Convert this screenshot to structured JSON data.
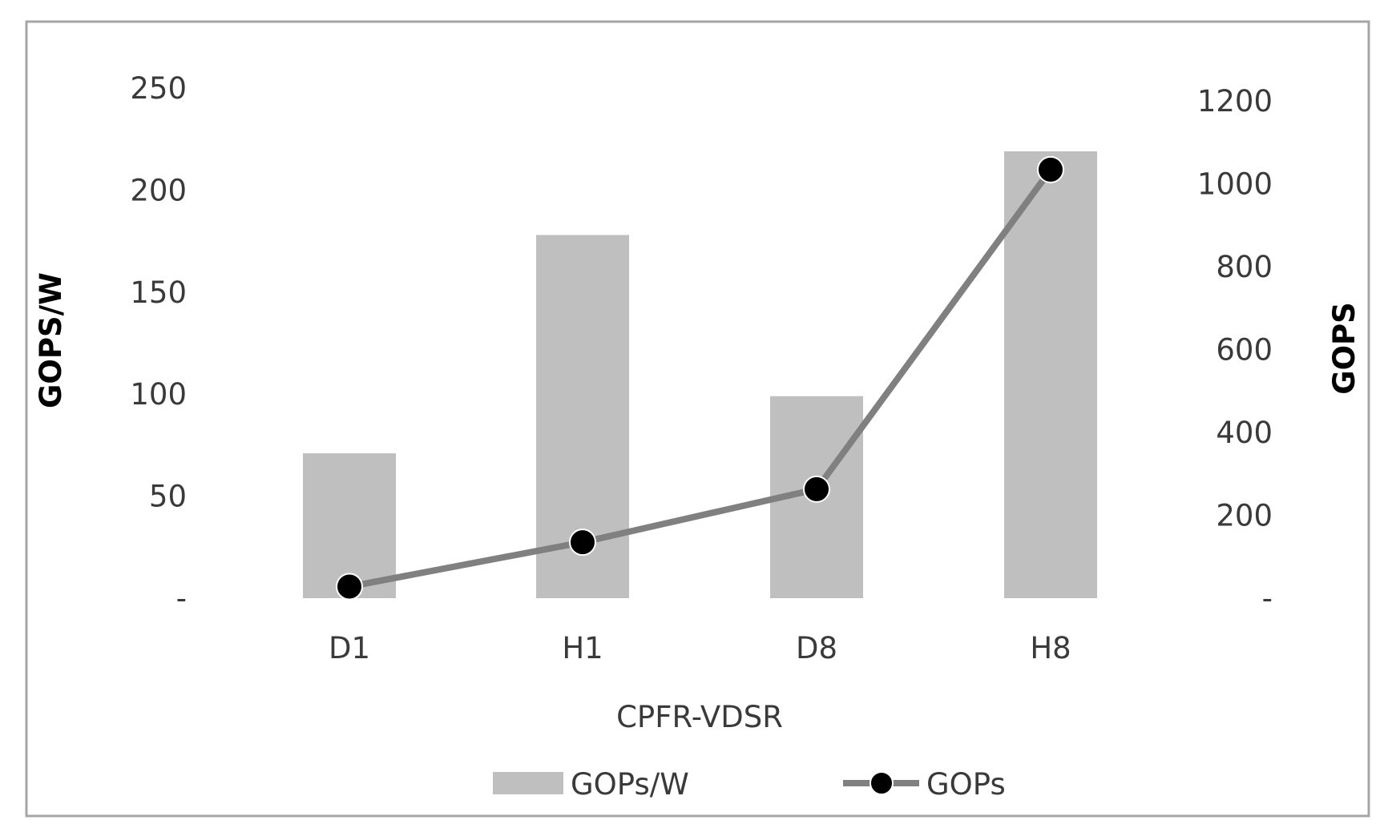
{
  "chart_data": {
    "type": "bar+line",
    "categories": [
      "D1",
      "H1",
      "D8",
      "H8"
    ],
    "xlabel": "CPFR-VDSR",
    "series": [
      {
        "name": "GOPs/W",
        "type": "bar",
        "axis": "left",
        "values": [
          71,
          178,
          99,
          219
        ],
        "color": "#bfbfbf"
      },
      {
        "name": "GOPs",
        "type": "line",
        "axis": "right",
        "values": [
          28,
          135,
          263,
          1034
        ],
        "color": "#808080",
        "marker_color": "#000000"
      }
    ],
    "y_left": {
      "label": "GOPS/W",
      "lim": [
        0,
        250
      ],
      "ticks": [
        0,
        50,
        100,
        150,
        200,
        250
      ],
      "tick_labels": [
        "-",
        "50",
        "100",
        "150",
        "200",
        "250"
      ]
    },
    "y_right": {
      "label": "GOPS",
      "lim": [
        0,
        1200
      ],
      "ticks": [
        0,
        200,
        400,
        600,
        800,
        1000,
        1200
      ],
      "tick_labels": [
        "-",
        "200",
        "400",
        "600",
        "800",
        "1000",
        "1200"
      ]
    },
    "legend": {
      "placement": "bottom",
      "entries": [
        "GOPs/W",
        "GOPs"
      ]
    },
    "grid": false
  }
}
